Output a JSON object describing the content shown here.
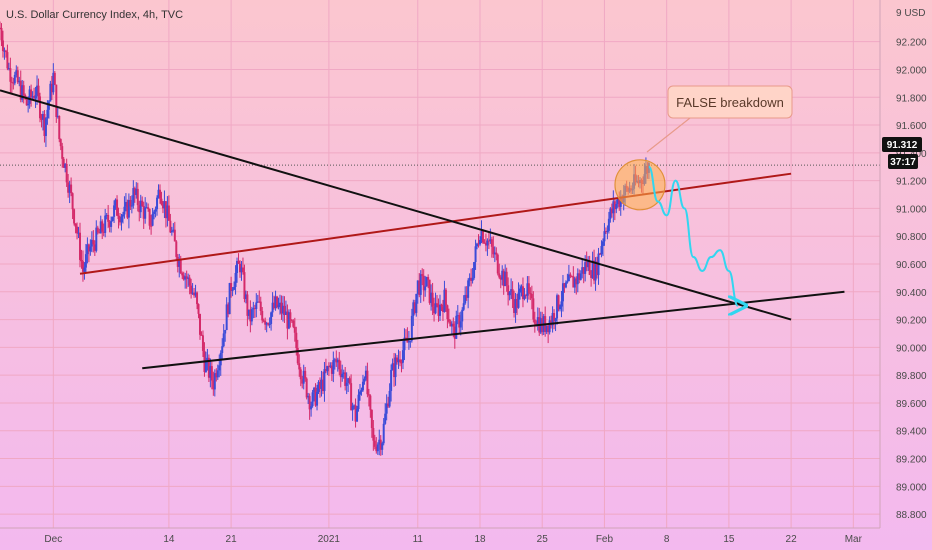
{
  "header": {
    "title": "U.S. Dollar Currency Index, 4h, TVC"
  },
  "colors": {
    "bull": "#3b4bd8",
    "bear": "#d42a6a",
    "red_trendline": "#b01818",
    "black_trendline": "#111111",
    "projection": "#32d6f0",
    "highlight_fill": "#ffb347",
    "callout_border": "#e89a8a",
    "callout_fill": "#ffd4c8",
    "price_tag_bg": "#111111"
  },
  "price_tags": {
    "last_price": "91.312",
    "countdown": "37:17"
  },
  "callout": {
    "text": "FALSE breakdown"
  },
  "chart_data": {
    "type": "candlestick",
    "title": "U.S. Dollar Currency Index, 4h, TVC",
    "y_unit_label": "USD",
    "ylim": [
      88.7,
      92.5
    ],
    "yticks": [
      88.8,
      89.0,
      89.2,
      89.4,
      89.6,
      89.8,
      90.0,
      90.2,
      90.4,
      90.6,
      90.8,
      91.0,
      91.2,
      91.4,
      91.6,
      91.8,
      92.0,
      92.2
    ],
    "ytick_labels": [
      "88.800",
      "89.000",
      "89.200",
      "89.400",
      "89.600",
      "89.800",
      "90.000",
      "90.200",
      "90.400",
      "90.600",
      "90.800",
      "91.000",
      "91.200",
      "91.400",
      "91.600",
      "91.800",
      "92.000",
      "92.200"
    ],
    "top_tick_label": "9 USD",
    "x_axis_labels": [
      {
        "label": "Dec",
        "date": "2020-12-01"
      },
      {
        "label": "14",
        "date": "2020-12-14"
      },
      {
        "label": "21",
        "date": "2020-12-21"
      },
      {
        "label": "2021",
        "date": "2021-01-01"
      },
      {
        "label": "11",
        "date": "2021-01-11"
      },
      {
        "label": "18",
        "date": "2021-01-18"
      },
      {
        "label": "25",
        "date": "2021-01-25"
      },
      {
        "label": "Feb",
        "date": "2021-02-01"
      },
      {
        "label": "8",
        "date": "2021-02-08"
      },
      {
        "label": "15",
        "date": "2021-02-15"
      },
      {
        "label": "22",
        "date": "2021-02-22"
      },
      {
        "label": "Mar",
        "date": "2021-03-01"
      }
    ],
    "x_range": [
      "2020-11-25T00:00",
      "2021-03-04T00:00"
    ],
    "price_path": [
      [
        "2020-11-25T00:00",
        92.3
      ],
      [
        "2020-11-26T00:00",
        92.0
      ],
      [
        "2020-11-27T00:00",
        91.9
      ],
      [
        "2020-11-28T00:00",
        91.75
      ],
      [
        "2020-11-29T00:00",
        91.85
      ],
      [
        "2020-11-30T00:00",
        91.6
      ],
      [
        "2020-12-01T00:00",
        91.95
      ],
      [
        "2020-12-01T16:00",
        91.5
      ],
      [
        "2020-12-02T12:00",
        91.25
      ],
      [
        "2020-12-03T12:00",
        90.9
      ],
      [
        "2020-12-04T08:00",
        90.55
      ],
      [
        "2020-12-05T00:00",
        90.7
      ],
      [
        "2020-12-06T00:00",
        90.8
      ],
      [
        "2020-12-07T00:00",
        90.9
      ],
      [
        "2020-12-08T00:00",
        91.0
      ],
      [
        "2020-12-09T00:00",
        90.95
      ],
      [
        "2020-12-10T00:00",
        91.1
      ],
      [
        "2020-12-11T00:00",
        91.0
      ],
      [
        "2020-12-12T00:00",
        90.9
      ],
      [
        "2020-12-13T00:00",
        91.15
      ],
      [
        "2020-12-14T00:00",
        90.9
      ],
      [
        "2020-12-15T00:00",
        90.65
      ],
      [
        "2020-12-16T00:00",
        90.5
      ],
      [
        "2020-12-17T00:00",
        90.35
      ],
      [
        "2020-12-18T00:00",
        89.9
      ],
      [
        "2020-12-19T00:00",
        89.75
      ],
      [
        "2020-12-20T00:00",
        90.05
      ],
      [
        "2020-12-21T00:00",
        90.45
      ],
      [
        "2020-12-22T00:00",
        90.6
      ],
      [
        "2020-12-23T00:00",
        90.2
      ],
      [
        "2020-12-24T00:00",
        90.3
      ],
      [
        "2020-12-25T00:00",
        90.2
      ],
      [
        "2020-12-26T00:00",
        90.3
      ],
      [
        "2020-12-27T00:00",
        90.25
      ],
      [
        "2020-12-28T00:00",
        90.1
      ],
      [
        "2020-12-29T00:00",
        89.8
      ],
      [
        "2020-12-30T00:00",
        89.6
      ],
      [
        "2020-12-31T00:00",
        89.7
      ],
      [
        "2021-01-01T00:00",
        89.85
      ],
      [
        "2021-01-02T00:00",
        89.9
      ],
      [
        "2021-01-03T00:00",
        89.75
      ],
      [
        "2021-01-04T00:00",
        89.5
      ],
      [
        "2021-01-05T00:00",
        89.85
      ],
      [
        "2021-01-06T00:00",
        89.3
      ],
      [
        "2021-01-07T00:00",
        89.35
      ],
      [
        "2021-01-08T00:00",
        89.8
      ],
      [
        "2021-01-09T00:00",
        89.95
      ],
      [
        "2021-01-10T00:00",
        90.05
      ],
      [
        "2021-01-11T00:00",
        90.45
      ],
      [
        "2021-01-12T00:00",
        90.45
      ],
      [
        "2021-01-13T00:00",
        90.25
      ],
      [
        "2021-01-14T00:00",
        90.35
      ],
      [
        "2021-01-15T00:00",
        90.1
      ],
      [
        "2021-01-16T00:00",
        90.25
      ],
      [
        "2021-01-17T00:00",
        90.5
      ],
      [
        "2021-01-18T00:00",
        90.85
      ],
      [
        "2021-01-19T00:00",
        90.75
      ],
      [
        "2021-01-20T00:00",
        90.6
      ],
      [
        "2021-01-21T00:00",
        90.45
      ],
      [
        "2021-01-22T00:00",
        90.3
      ],
      [
        "2021-01-23T00:00",
        90.45
      ],
      [
        "2021-01-24T00:00",
        90.25
      ],
      [
        "2021-01-25T00:00",
        90.15
      ],
      [
        "2021-01-26T00:00",
        90.2
      ],
      [
        "2021-01-27T00:00",
        90.35
      ],
      [
        "2021-01-28T00:00",
        90.45
      ],
      [
        "2021-01-29T00:00",
        90.5
      ],
      [
        "2021-01-30T00:00",
        90.6
      ],
      [
        "2021-01-31T00:00",
        90.55
      ],
      [
        "2021-02-01T00:00",
        90.85
      ],
      [
        "2021-02-02T00:00",
        91.0
      ],
      [
        "2021-02-03T00:00",
        91.1
      ],
      [
        "2021-02-04T00:00",
        91.15
      ],
      [
        "2021-02-05T00:00",
        91.2
      ],
      [
        "2021-02-06T00:00",
        91.31
      ]
    ],
    "trendlines": [
      {
        "name": "red-trendline",
        "color": "#b01818",
        "from": [
          "2020-12-04",
          90.53
        ],
        "to": [
          "2021-02-22",
          91.25
        ]
      },
      {
        "name": "descending-trendline",
        "color": "#111111",
        "from": [
          "2020-11-25",
          91.85
        ],
        "to": [
          "2021-02-22",
          90.2
        ]
      },
      {
        "name": "lower-support-trendline",
        "color": "#111111",
        "from": [
          "2020-12-11",
          89.85
        ],
        "to": [
          "2021-02-28",
          90.4
        ]
      }
    ],
    "projection": [
      [
        "2021-02-06T00:00",
        91.3
      ],
      [
        "2021-02-07T00:00",
        91.05
      ],
      [
        "2021-02-08T00:00",
        90.95
      ],
      [
        "2021-02-09T00:00",
        91.2
      ],
      [
        "2021-02-10T00:00",
        91.0
      ],
      [
        "2021-02-11T00:00",
        90.65
      ],
      [
        "2021-02-12T00:00",
        90.55
      ],
      [
        "2021-02-13T00:00",
        90.65
      ],
      [
        "2021-02-14T00:00",
        90.7
      ],
      [
        "2021-02-15T00:00",
        90.55
      ],
      [
        "2021-02-16T00:00",
        90.3
      ]
    ],
    "highlight": {
      "center": [
        "2021-02-05T00:00",
        91.17
      ],
      "label": "FALSE breakdown"
    }
  }
}
